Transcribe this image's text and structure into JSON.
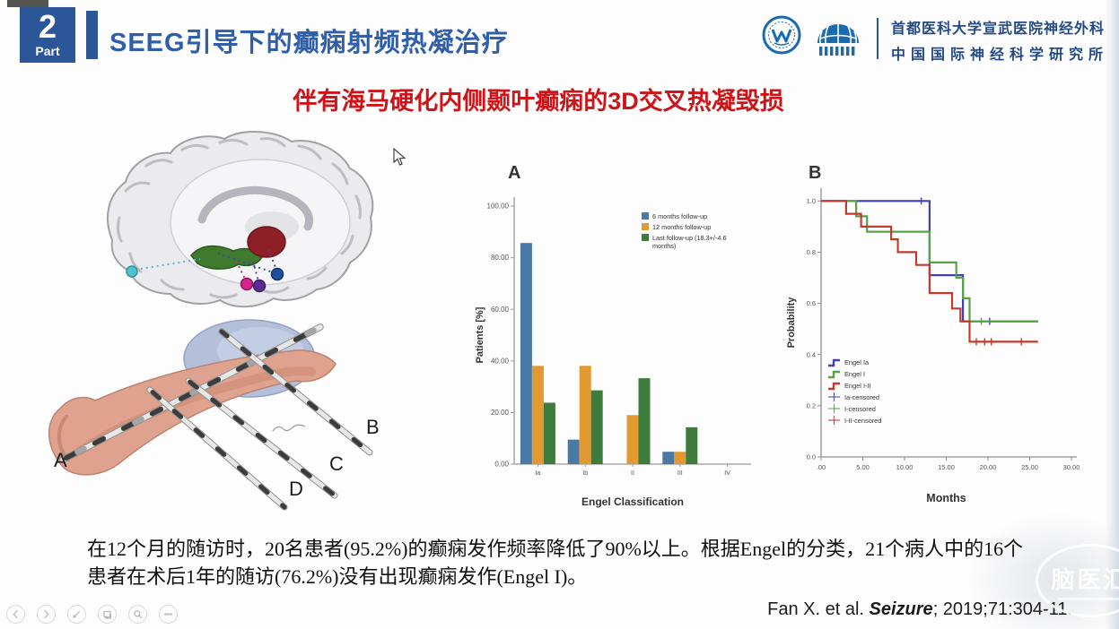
{
  "header": {
    "part_number": "2",
    "part_label": "Part",
    "title": "SEEG引导下的癫痫射频热凝治疗",
    "affiliation_line1": "首都医科大学宣武医院神经外科",
    "affiliation_line2": "中国国际神经科学研究所"
  },
  "subtitle": "伴有海马硬化内侧颞叶癫痫的3D交叉热凝毁损",
  "anatomy": {
    "electrode_labels": [
      "A",
      "B",
      "C",
      "D"
    ]
  },
  "findings_text": "在12个月的随访时，20名患者(95.2%)的癫痫发作频率降低了90%以上。根据Engel的分类，21个病人中的16个患者在术后1年的随访(76.2%)没有出现癫痫发作(Engel I)。",
  "citation": {
    "authors": "Fan X. et al. ",
    "journal": "Seizure",
    "rest": "; 2019;71:304-11."
  },
  "watermark": {
    "text": "脑医汇"
  },
  "player_controls": [
    "previous-slide",
    "next-slide",
    "pen",
    "all-slides",
    "zoom",
    "more-options"
  ],
  "colors": {
    "accent_blue": "#2b5799",
    "title_blue": "#2f5eaa",
    "subtitle_red": "#ce1418",
    "bar_blue": "#4a79a5",
    "bar_orange": "#e2992f",
    "bar_green": "#3e7c3e",
    "km_blue": "#4040b0",
    "km_green": "#55a344",
    "km_red": "#c23a2e"
  },
  "chart_data": [
    {
      "type": "bar",
      "panel_label": "A",
      "categories": [
        "Ia",
        "Ib",
        "II",
        "III",
        "IV"
      ],
      "series": [
        {
          "name": "6 months follow-up",
          "color": "#4a79a5",
          "values": [
            85.7,
            9.5,
            0,
            4.8,
            0
          ]
        },
        {
          "name": "12 months follow-up",
          "color": "#e2992f",
          "values": [
            38.1,
            38.1,
            19.0,
            4.8,
            0
          ]
        },
        {
          "name": "Last follow-up (18.3+/-4.6 months)",
          "color": "#3e7c3e",
          "values": [
            23.8,
            28.6,
            33.3,
            14.3,
            0
          ]
        }
      ],
      "xlabel": "Engel Classification",
      "ylabel": "Patients [%]",
      "ylim": [
        0,
        100
      ],
      "ytick_labels": [
        "0.00",
        "20.00",
        "40.00",
        "60.00",
        "80.00",
        "100.00"
      ],
      "legend_position": "top-right",
      "grid": false
    },
    {
      "type": "line",
      "step": true,
      "panel_label": "B",
      "xlabel": "Months",
      "ylabel": "Probability",
      "xlim": [
        0,
        30
      ],
      "xtick_labels": [
        ".00",
        "5.00",
        "10.00",
        "15.00",
        "20.00",
        "25.00",
        "30.00"
      ],
      "ylim": [
        0,
        1.05
      ],
      "ytick_labels": [
        "0.0",
        "0.2",
        "0.4",
        "0.6",
        "0.8",
        "1.0"
      ],
      "legend_position": "lower-left",
      "series": [
        {
          "name": "Engel Ia",
          "censored_label": "Ia-censored",
          "color": "#4040b0",
          "points": [
            [
              0,
              1.0
            ],
            [
              13,
              1.0
            ],
            [
              13,
              0.71
            ],
            [
              17,
              0.71
            ],
            [
              17,
              0.53
            ],
            [
              26,
              0.53
            ]
          ],
          "censored": [
            [
              12,
              1.0
            ],
            [
              20.2,
              0.53
            ]
          ]
        },
        {
          "name": "Engel I",
          "censored_label": "I-censored",
          "color": "#55a344",
          "points": [
            [
              0,
              1.0
            ],
            [
              4.2,
              1.0
            ],
            [
              4.2,
              0.94
            ],
            [
              5.5,
              0.94
            ],
            [
              5.5,
              0.88
            ],
            [
              13,
              0.88
            ],
            [
              13,
              0.76
            ],
            [
              16.2,
              0.76
            ],
            [
              16.2,
              0.7
            ],
            [
              17,
              0.7
            ],
            [
              17,
              0.62
            ],
            [
              17.8,
              0.62
            ],
            [
              17.8,
              0.53
            ],
            [
              26,
              0.53
            ]
          ],
          "censored": [
            [
              19.2,
              0.53
            ]
          ]
        },
        {
          "name": "Engel I-II",
          "censored_label": "I-II-censored",
          "color": "#c23a2e",
          "points": [
            [
              0,
              1.0
            ],
            [
              3,
              1.0
            ],
            [
              3,
              0.95
            ],
            [
              4.8,
              0.95
            ],
            [
              4.8,
              0.9
            ],
            [
              8.4,
              0.9
            ],
            [
              8.4,
              0.85
            ],
            [
              9.2,
              0.85
            ],
            [
              9.2,
              0.8
            ],
            [
              11.4,
              0.8
            ],
            [
              11.4,
              0.75
            ],
            [
              13,
              0.75
            ],
            [
              13,
              0.64
            ],
            [
              15.7,
              0.64
            ],
            [
              15.7,
              0.58
            ],
            [
              16.7,
              0.58
            ],
            [
              16.7,
              0.53
            ],
            [
              17.8,
              0.53
            ],
            [
              17.8,
              0.45
            ],
            [
              26,
              0.45
            ]
          ],
          "censored": [
            [
              18.6,
              0.45
            ],
            [
              19.6,
              0.45
            ],
            [
              20.4,
              0.45
            ],
            [
              24,
              0.45
            ]
          ]
        }
      ]
    }
  ]
}
